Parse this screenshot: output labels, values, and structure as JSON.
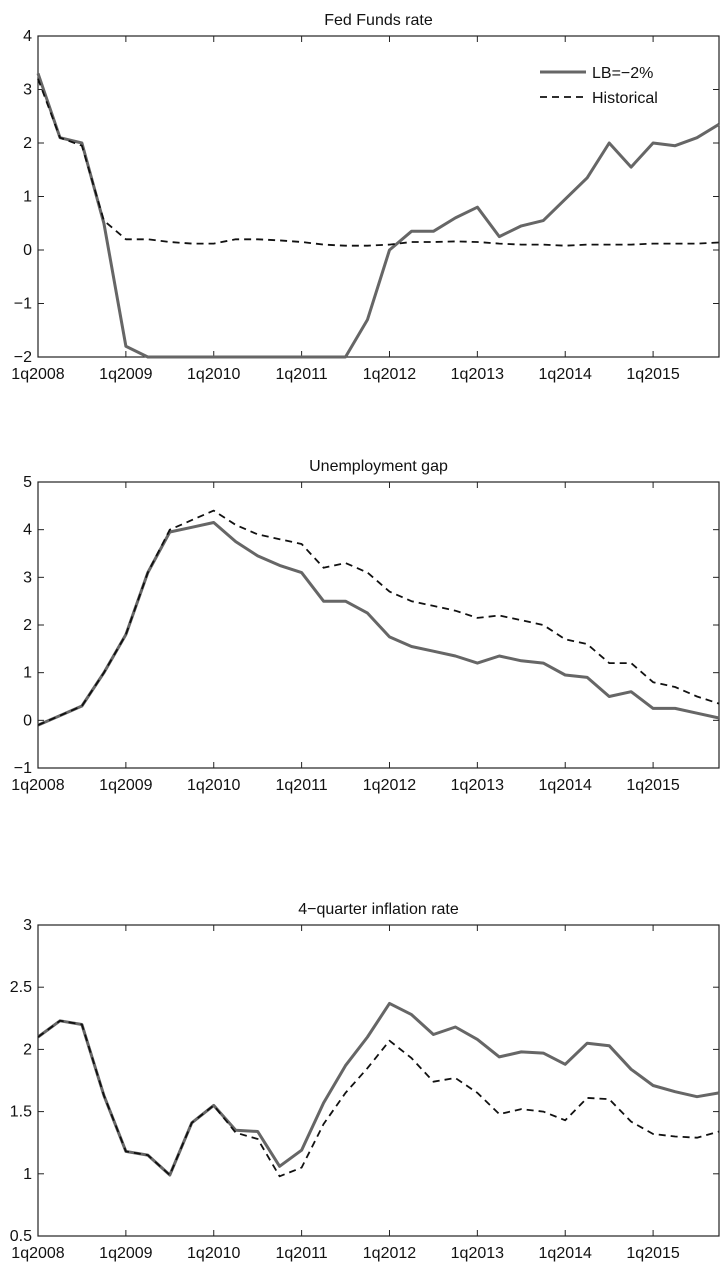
{
  "x_tick_labels": [
    "1q2008",
    "1q2009",
    "1q2010",
    "1q2011",
    "1q2012",
    "1q2013",
    "1q2014",
    "1q2015"
  ],
  "colors": {
    "lb_series": "#666666",
    "historical_series": "#111111",
    "axis": "#222222"
  },
  "chart_data": [
    {
      "type": "line",
      "title": "Fed Funds rate",
      "xlabel": "",
      "ylabel": "",
      "x_range": [
        "1q2008",
        "4q2015"
      ],
      "ylim": [
        -2,
        4
      ],
      "y_ticks": [
        -2,
        -1,
        0,
        1,
        2,
        3,
        4
      ],
      "y_tick_labels": [
        "−2",
        "−1",
        "0",
        "1",
        "2",
        "3",
        "4"
      ],
      "grid": false,
      "legend": "top-right",
      "x": [
        "1q2008",
        "2q2008",
        "3q2008",
        "4q2008",
        "1q2009",
        "2q2009",
        "3q2009",
        "4q2009",
        "1q2010",
        "2q2010",
        "3q2010",
        "4q2010",
        "1q2011",
        "2q2011",
        "3q2011",
        "4q2011",
        "1q2012",
        "2q2012",
        "3q2012",
        "4q2012",
        "1q2013",
        "2q2013",
        "3q2013",
        "4q2013",
        "1q2014",
        "2q2014",
        "3q2014",
        "4q2014",
        "1q2015",
        "2q2015",
        "3q2015",
        "4q2015"
      ],
      "series": [
        {
          "name": "LB=−2%",
          "style": "solid",
          "values": [
            3.3,
            2.1,
            2.0,
            0.5,
            -1.8,
            -2.0,
            -2.0,
            -2.0,
            -2.0,
            -2.0,
            -2.0,
            -2.0,
            -2.0,
            -2.0,
            -2.0,
            -1.3,
            0.0,
            0.35,
            0.35,
            0.6,
            0.8,
            0.25,
            0.45,
            0.55,
            0.95,
            1.35,
            2.0,
            1.55,
            2.0,
            1.95,
            2.1,
            2.35
          ]
        },
        {
          "name": "Historical",
          "style": "dashed",
          "values": [
            3.2,
            2.1,
            1.95,
            0.55,
            0.2,
            0.2,
            0.15,
            0.12,
            0.12,
            0.2,
            0.2,
            0.18,
            0.15,
            0.1,
            0.08,
            0.08,
            0.1,
            0.15,
            0.15,
            0.16,
            0.15,
            0.12,
            0.1,
            0.1,
            0.08,
            0.1,
            0.1,
            0.1,
            0.12,
            0.12,
            0.12,
            0.14
          ]
        }
      ]
    },
    {
      "type": "line",
      "title": "Unemployment gap",
      "xlabel": "",
      "ylabel": "",
      "x_range": [
        "1q2008",
        "4q2015"
      ],
      "ylim": [
        -1,
        5
      ],
      "y_ticks": [
        -1,
        0,
        1,
        2,
        3,
        4,
        5
      ],
      "y_tick_labels": [
        "−1",
        "0",
        "1",
        "2",
        "3",
        "4",
        "5"
      ],
      "grid": false,
      "legend": "none",
      "x": [
        "1q2008",
        "2q2008",
        "3q2008",
        "4q2008",
        "1q2009",
        "2q2009",
        "3q2009",
        "4q2009",
        "1q2010",
        "2q2010",
        "3q2010",
        "4q2010",
        "1q2011",
        "2q2011",
        "3q2011",
        "4q2011",
        "1q2012",
        "2q2012",
        "3q2012",
        "4q2012",
        "1q2013",
        "2q2013",
        "3q2013",
        "4q2013",
        "1q2014",
        "2q2014",
        "3q2014",
        "4q2014",
        "1q2015",
        "2q2015",
        "3q2015",
        "4q2015"
      ],
      "series": [
        {
          "name": "LB=−2%",
          "style": "solid",
          "values": [
            -0.1,
            0.1,
            0.3,
            1.0,
            1.8,
            3.1,
            3.95,
            4.05,
            4.15,
            3.75,
            3.45,
            3.25,
            3.1,
            2.5,
            2.5,
            2.25,
            1.75,
            1.55,
            1.45,
            1.35,
            1.2,
            1.35,
            1.25,
            1.2,
            0.95,
            0.9,
            0.5,
            0.6,
            0.25,
            0.25,
            0.15,
            0.05
          ]
        },
        {
          "name": "Historical",
          "style": "dashed",
          "values": [
            -0.1,
            0.1,
            0.3,
            1.0,
            1.8,
            3.1,
            4.0,
            4.2,
            4.4,
            4.1,
            3.9,
            3.8,
            3.7,
            3.2,
            3.3,
            3.1,
            2.7,
            2.5,
            2.4,
            2.3,
            2.15,
            2.2,
            2.1,
            2.0,
            1.7,
            1.6,
            1.2,
            1.2,
            0.8,
            0.7,
            0.5,
            0.35
          ]
        }
      ]
    },
    {
      "type": "line",
      "title": "4−quarter inflation rate",
      "xlabel": "",
      "ylabel": "",
      "x_range": [
        "1q2008",
        "4q2015"
      ],
      "ylim": [
        0.5,
        3
      ],
      "y_ticks": [
        0.5,
        1,
        1.5,
        2,
        2.5,
        3
      ],
      "y_tick_labels": [
        "0.5",
        "1",
        "1.5",
        "2",
        "2.5",
        "3"
      ],
      "grid": false,
      "legend": "none",
      "x": [
        "1q2008",
        "2q2008",
        "3q2008",
        "4q2008",
        "1q2009",
        "2q2009",
        "3q2009",
        "4q2009",
        "1q2010",
        "2q2010",
        "3q2010",
        "4q2010",
        "1q2011",
        "2q2011",
        "3q2011",
        "4q2011",
        "1q2012",
        "2q2012",
        "3q2012",
        "4q2012",
        "1q2013",
        "2q2013",
        "3q2013",
        "4q2013",
        "1q2014",
        "2q2014",
        "3q2014",
        "4q2014",
        "1q2015",
        "2q2015",
        "3q2015",
        "4q2015"
      ],
      "series": [
        {
          "name": "LB=−2%",
          "style": "solid",
          "values": [
            2.1,
            2.23,
            2.2,
            1.63,
            1.18,
            1.15,
            0.99,
            1.41,
            1.55,
            1.35,
            1.34,
            1.06,
            1.19,
            1.57,
            1.87,
            2.1,
            2.37,
            2.28,
            2.12,
            2.18,
            2.08,
            1.94,
            1.98,
            1.97,
            1.88,
            2.05,
            2.03,
            1.84,
            1.71,
            1.66,
            1.62,
            1.65
          ]
        },
        {
          "name": "Historical",
          "style": "dashed",
          "values": [
            2.1,
            2.23,
            2.2,
            1.63,
            1.18,
            1.15,
            0.99,
            1.41,
            1.55,
            1.33,
            1.28,
            0.98,
            1.05,
            1.4,
            1.65,
            1.85,
            2.07,
            1.93,
            1.74,
            1.77,
            1.65,
            1.48,
            1.52,
            1.5,
            1.43,
            1.61,
            1.6,
            1.42,
            1.32,
            1.3,
            1.29,
            1.34
          ]
        }
      ]
    }
  ]
}
